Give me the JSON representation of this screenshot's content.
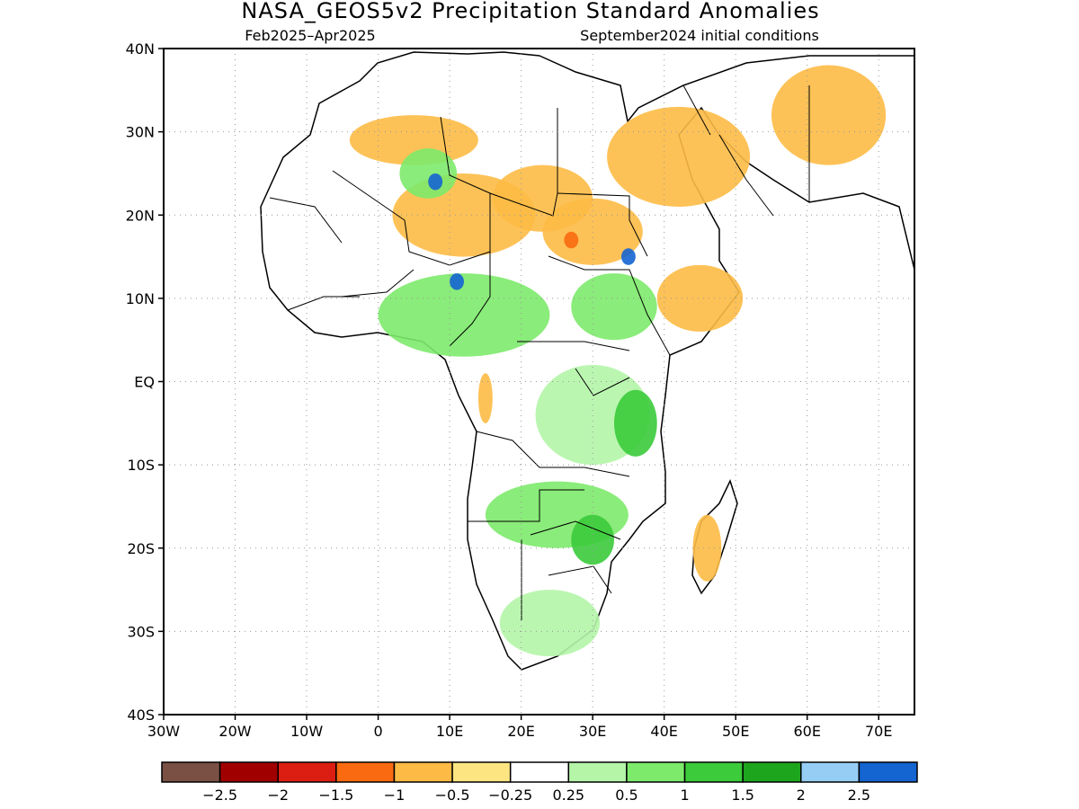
{
  "title": "NASA_GEOS5v2 Precipitation Standard Anomalies",
  "subtitle_left": "Feb2025–Apr2025",
  "subtitle_right": "September2024 initial conditions",
  "map": {
    "lon_range": [
      -30,
      75
    ],
    "lat_range": [
      -40,
      40
    ],
    "lat_labels": [
      {
        "lat": 40,
        "label": "40N"
      },
      {
        "lat": 30,
        "label": "30N"
      },
      {
        "lat": 20,
        "label": "20N"
      },
      {
        "lat": 10,
        "label": "10N"
      },
      {
        "lat": 0,
        "label": "EQ"
      },
      {
        "lat": -10,
        "label": "10S"
      },
      {
        "lat": -20,
        "label": "20S"
      },
      {
        "lat": -30,
        "label": "30S"
      },
      {
        "lat": -40,
        "label": "40S"
      }
    ],
    "lon_labels": [
      {
        "lon": -30,
        "label": "30W"
      },
      {
        "lon": -20,
        "label": "20W"
      },
      {
        "lon": -10,
        "label": "10W"
      },
      {
        "lon": 0,
        "label": "0"
      },
      {
        "lon": 10,
        "label": "10E"
      },
      {
        "lon": 20,
        "label": "20E"
      },
      {
        "lon": 30,
        "label": "30E"
      },
      {
        "lon": 40,
        "label": "40E"
      },
      {
        "lon": 50,
        "label": "50E"
      },
      {
        "lon": 60,
        "label": "60E"
      },
      {
        "lon": 70,
        "label": "70E"
      }
    ],
    "gridlines": "dotted"
  },
  "colorbar": {
    "colors": [
      "#7a5045",
      "#a00000",
      "#dc1e12",
      "#fa6a10",
      "#fdbb45",
      "#fde682",
      "#ffffff",
      "#b4f5a8",
      "#7dea6c",
      "#3bcb3b",
      "#1ea51e",
      "#96cdf5",
      "#1464d2"
    ],
    "labels": [
      "−2.5",
      "−2",
      "−1.5",
      "−1",
      "−0.5",
      "−0.25",
      "0.25",
      "0.5",
      "1",
      "1.5",
      "2",
      "2.5"
    ]
  },
  "anomaly_blobs": [
    {
      "lon": 23,
      "lat": 22,
      "rx": 7,
      "ry": 4,
      "level": "orange-light"
    },
    {
      "lon": 12,
      "lat": 20,
      "rx": 10,
      "ry": 5,
      "level": "orange"
    },
    {
      "lon": 30,
      "lat": 18,
      "rx": 7,
      "ry": 4,
      "level": "orange"
    },
    {
      "lon": 27,
      "lat": 17,
      "rx": 1,
      "ry": 1,
      "level": "red"
    },
    {
      "lon": 5,
      "lat": 29,
      "rx": 9,
      "ry": 3,
      "level": "orange-light"
    },
    {
      "lon": 42,
      "lat": 27,
      "rx": 10,
      "ry": 6,
      "level": "orange-light"
    },
    {
      "lon": 63,
      "lat": 32,
      "rx": 8,
      "ry": 6,
      "level": "orange-light"
    },
    {
      "lon": 45,
      "lat": 10,
      "rx": 6,
      "ry": 4,
      "level": "orange-light"
    },
    {
      "lon": 12,
      "lat": 8,
      "rx": 12,
      "ry": 5,
      "level": "green"
    },
    {
      "lon": 33,
      "lat": 9,
      "rx": 6,
      "ry": 4,
      "level": "green"
    },
    {
      "lon": 30,
      "lat": -4,
      "rx": 8,
      "ry": 6,
      "level": "green-light"
    },
    {
      "lon": 36,
      "lat": -5,
      "rx": 3,
      "ry": 4,
      "level": "green-dark"
    },
    {
      "lon": 25,
      "lat": -16,
      "rx": 10,
      "ry": 4,
      "level": "green"
    },
    {
      "lon": 30,
      "lat": -19,
      "rx": 3,
      "ry": 3,
      "level": "green-dark"
    },
    {
      "lon": 24,
      "lat": -29,
      "rx": 7,
      "ry": 4,
      "level": "green-light"
    },
    {
      "lon": 7,
      "lat": 25,
      "rx": 4,
      "ry": 3,
      "level": "green"
    },
    {
      "lon": 8,
      "lat": 24,
      "rx": 1,
      "ry": 1,
      "level": "blue"
    },
    {
      "lon": 11,
      "lat": 12,
      "rx": 1,
      "ry": 1,
      "level": "blue"
    },
    {
      "lon": 35,
      "lat": 15,
      "rx": 1,
      "ry": 1,
      "level": "blue"
    },
    {
      "lon": 15,
      "lat": -2,
      "rx": 1,
      "ry": 3,
      "level": "orange"
    },
    {
      "lon": 46,
      "lat": -20,
      "rx": 2,
      "ry": 4,
      "level": "orange-light"
    }
  ],
  "blob_colors": {
    "orange-light": "#fdbb45",
    "orange": "#fdbb45",
    "red": "#fa6a10",
    "green-light": "#b4f5a8",
    "green": "#7dea6c",
    "green-dark": "#3bcb3b",
    "blue": "#1464d2"
  },
  "land_color": "#ffffff",
  "border_color": "#000000"
}
